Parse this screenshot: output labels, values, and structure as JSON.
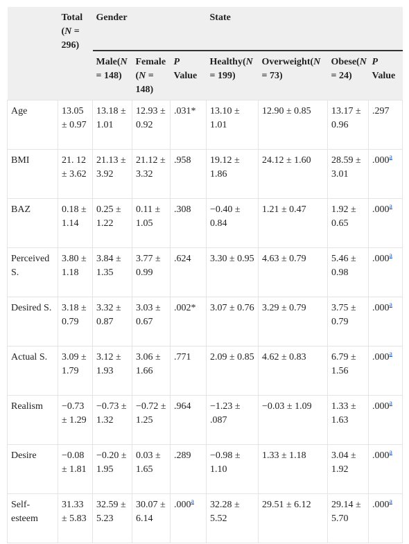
{
  "table": {
    "header": {
      "total": [
        {
          "text": "Total ("
        },
        {
          "text": "N",
          "italic": true
        },
        {
          "text": " = 296)"
        }
      ],
      "groups": [
        "Gender",
        "State"
      ],
      "columns": [
        [
          {
            "text": "Male("
          },
          {
            "text": "N",
            "italic": true
          },
          {
            "text": " = 148)"
          }
        ],
        [
          {
            "text": "Female ("
          },
          {
            "text": "N",
            "italic": true
          },
          {
            "text": " = 148)"
          }
        ],
        [
          {
            "text": "P",
            "italic": true
          },
          {
            "text": " Value"
          }
        ],
        [
          {
            "text": "Healthy("
          },
          {
            "text": "N",
            "italic": true
          },
          {
            "text": " = 199)"
          }
        ],
        [
          {
            "text": "Overweight("
          },
          {
            "text": "N",
            "italic": true
          },
          {
            "text": " = 73)"
          }
        ],
        [
          {
            "text": "Obese("
          },
          {
            "text": "N",
            "italic": true
          },
          {
            "text": " = 24)"
          }
        ],
        [
          {
            "text": "P",
            "italic": true
          },
          {
            "text": " Value"
          }
        ]
      ]
    },
    "rows": [
      {
        "label": "Age",
        "cells": [
          "13.05 ± 0.97",
          "13.18 ± 1.01",
          "12.93 ± 0.92",
          ".031*",
          "13.10 ± 1.01",
          "12.90 ± 0.85",
          "13.17 ± 0.96",
          ".297"
        ]
      },
      {
        "label": "BMI",
        "cells": [
          "21. 12 ± 3.62",
          "21.13 ± 3.92",
          "21.12 ± 3.32",
          ".958",
          "19.12 ± 1.86",
          "24.12 ± 1.60",
          "28.59 ± 3.01",
          {
            "text": ".000",
            "note": "a"
          }
        ]
      },
      {
        "label": "BAZ",
        "cells": [
          "0.18 ± 1.14",
          "0.25 ± 1.22",
          "0.11 ± 1.05",
          ".308",
          "−0.40 ± 0.84",
          "1.21 ± 0.47",
          "1.92 ± 0.65",
          {
            "text": ".000",
            "note": "a"
          }
        ]
      },
      {
        "label": "Perceived S.",
        "cells": [
          "3.80 ± 1.18",
          "3.84 ± 1.35",
          "3.77 ± 0.99",
          ".624",
          "3.30 ± 0.95",
          "4.63 ± 0.79",
          "5.46 ± 0.98",
          {
            "text": ".000",
            "note": "a"
          }
        ]
      },
      {
        "label": "Desired S.",
        "cells": [
          "3.18 ± 0.79",
          "3.32 ± 0.87",
          "3.03 ± 0.67",
          ".002*",
          "3.07 ± 0.76",
          "3.29 ± 0.79",
          "3.75 ± 0.79",
          {
            "text": ".000",
            "note": "a"
          }
        ]
      },
      {
        "label": "Actual S.",
        "cells": [
          "3.09 ± 1.79",
          "3.12 ± 1.93",
          "3.06 ± 1.66",
          ".771",
          "2.09 ± 0.85",
          "4.62 ± 0.83",
          "6.79 ± 1.56",
          {
            "text": ".000",
            "note": "a"
          }
        ]
      },
      {
        "label": "Realism",
        "cells": [
          "−0.73 ± 1.29",
          "−0.73 ± 1.32",
          "−0.72 ± 1.25",
          ".964",
          "−1.23 ± .087",
          "−0.03 ± 1.09",
          "1.33 ± 1.63",
          {
            "text": ".000",
            "note": "a"
          }
        ]
      },
      {
        "label": "Desire",
        "cells": [
          "−0.08 ± 1.81",
          "−0.20 ± 1.95",
          "0.03 ± 1.65",
          ".289",
          "−0.98 ± 1.10",
          "1.33 ± 1.18",
          "3.04 ± 1.92",
          {
            "text": ".000",
            "note": "a"
          }
        ]
      },
      {
        "label": "Self-esteem",
        "cells": [
          "31.33 ± 5.83",
          "32.59 ± 5.23",
          "30.07 ± 6.14",
          {
            "text": ".000",
            "note": "a"
          },
          "32.28 ± 5.52",
          "29.51 ± 6.12",
          "29.14 ± 5.70",
          {
            "text": ".000",
            "note": "a"
          }
        ]
      }
    ]
  }
}
